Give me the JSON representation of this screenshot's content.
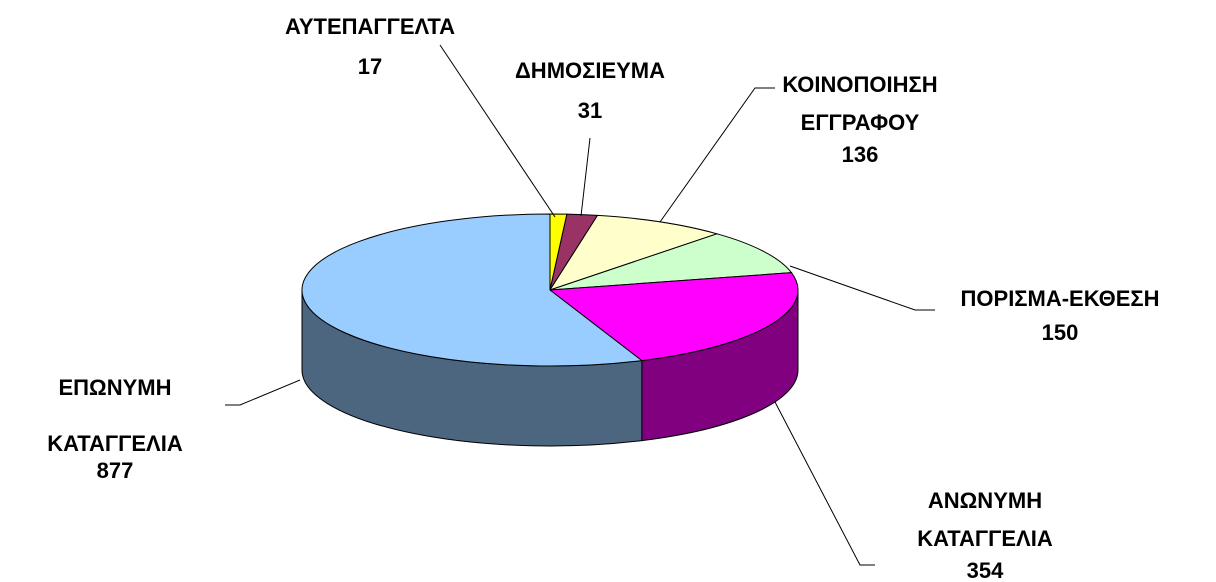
{
  "chart_data": {
    "type": "pie",
    "three_d": true,
    "categories": [
      "ΑΥΤΕΠΑΓΓΕΛΤΑ",
      "ΔΗΜΟΣΙΕΥΜΑ",
      "ΚΟΙΝΟΠΟΙΗΣΗ ΕΓΓΡΑΦΟΥ",
      "ΠΟΡΙΣΜΑ-ΕΚΘΕΣΗ",
      "ΑΝΩΝΥΜΗ ΚΑΤΑΓΓΕΛΙΑ",
      "ΕΠΩΝΥΜΗ ΚΑΤΑΓΓΕΛΙΑ"
    ],
    "values": [
      17,
      31,
      136,
      150,
      354,
      877
    ],
    "colors": [
      "#ffff00",
      "#993366",
      "#ffffcc",
      "#ccffcc",
      "#ff00ff",
      "#99ccff"
    ]
  }
}
